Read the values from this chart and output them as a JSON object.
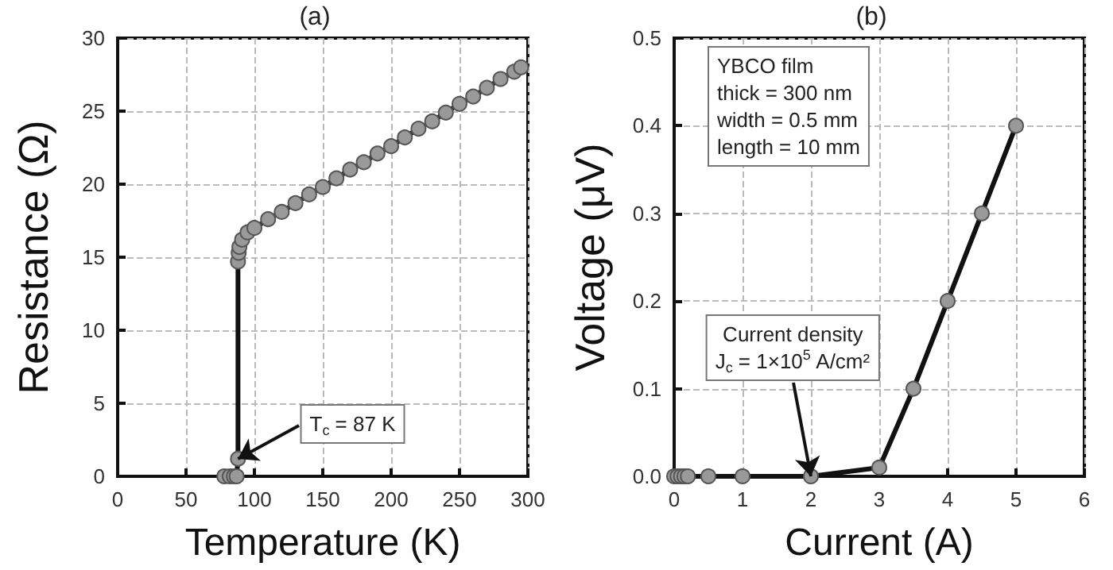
{
  "chart_data": [
    {
      "type": "line",
      "title": "(a)",
      "xlabel": "Temperature (K)",
      "ylabel": "Resistance (Ω)",
      "xlim": [
        0,
        300
      ],
      "xticks": [
        0,
        50,
        100,
        150,
        200,
        250,
        300
      ],
      "ylim": [
        0,
        30
      ],
      "yticks": [
        0,
        5,
        10,
        15,
        20,
        25,
        30
      ],
      "grid": true,
      "marker": "circle",
      "line_style": "solid",
      "series": [
        {
          "color": "#999999",
          "x": [
            78,
            82,
            85,
            87,
            88,
            88,
            88.5,
            89,
            91,
            95,
            100,
            110,
            120,
            130,
            140,
            150,
            160,
            170,
            180,
            190,
            200,
            210,
            220,
            230,
            240,
            250,
            260,
            270,
            280,
            290,
            295
          ],
          "values": [
            0,
            0,
            0,
            0,
            1.2,
            14.7,
            15.3,
            15.7,
            16.2,
            16.7,
            17.0,
            17.6,
            18.1,
            18.7,
            19.3,
            19.8,
            20.4,
            21.0,
            21.5,
            22.1,
            22.6,
            23.2,
            23.8,
            24.3,
            24.9,
            25.5,
            26.0,
            26.6,
            27.2,
            27.7,
            28.0
          ]
        }
      ],
      "annotations": [
        {
          "text": "T$_{c}$ = 87 K",
          "x": 88,
          "y": 1.2
        }
      ]
    },
    {
      "type": "line",
      "title": "(b)",
      "xlabel": "Current (A)",
      "ylabel": "Voltage (μV)",
      "xlim": [
        0,
        6
      ],
      "xticks": [
        0,
        1,
        2,
        3,
        4,
        5,
        6
      ],
      "ylim": [
        0,
        0.5
      ],
      "yticks": [
        {
          "value": 0,
          "label": "0.0"
        },
        0.1,
        0.2,
        0.3,
        0.4,
        0.5
      ],
      "grid": true,
      "marker": "circle",
      "line_style": "solid",
      "series": [
        {
          "color": "#999999",
          "x": [
            0,
            0.05,
            0.1,
            0.15,
            0.2,
            0.5,
            1,
            2,
            3,
            3.5,
            4,
            4.5,
            5
          ],
          "values": [
            0,
            0,
            0,
            0,
            0,
            0,
            0,
            0,
            0.01,
            0.1,
            0.2,
            0.3,
            0.4
          ]
        }
      ],
      "annotations": [
        "YBCO film\nthick = 300 nm\nwidth = 0.5 mm\nlength = 10 mm",
        {
          "text": "Current density\nJ$_{c}$ = 1×10$^{5}$ A/cm²",
          "x": 2,
          "y": 0
        }
      ]
    }
  ]
}
